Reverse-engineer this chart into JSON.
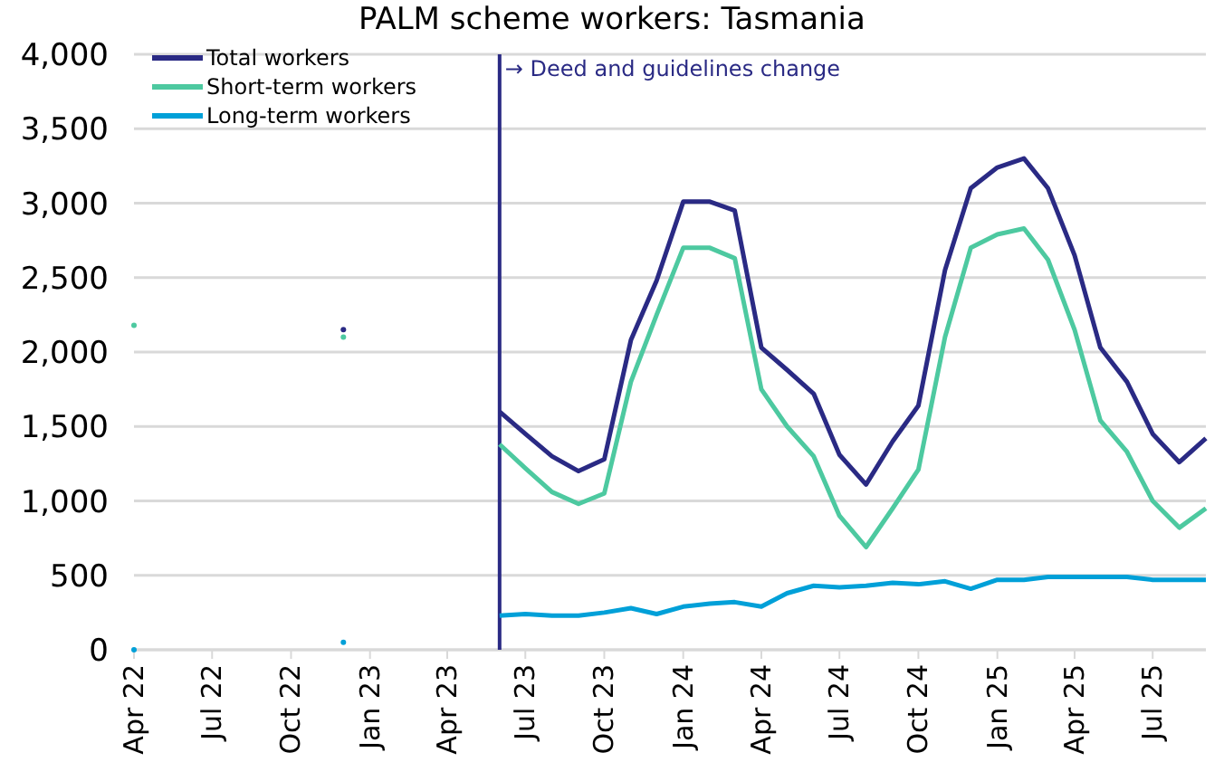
{
  "chart_data": {
    "type": "line",
    "title": "PALM scheme workers: Tasmania",
    "x": [
      "2022-04",
      "2022-05",
      "2022-06",
      "2022-07",
      "2022-08",
      "2022-09",
      "2022-10",
      "2022-11",
      "2022-12",
      "2023-01",
      "2023-02",
      "2023-03",
      "2023-04",
      "2023-05",
      "2023-06",
      "2023-07",
      "2023-08",
      "2023-09",
      "2023-10",
      "2023-11",
      "2023-12",
      "2024-01",
      "2024-02",
      "2024-03",
      "2024-04",
      "2024-05",
      "2024-06",
      "2024-07",
      "2024-08",
      "2024-09",
      "2024-10",
      "2024-11",
      "2024-12",
      "2025-01",
      "2025-02",
      "2025-03",
      "2025-04",
      "2025-05",
      "2025-06",
      "2025-07",
      "2025-08",
      "2025-09"
    ],
    "series": [
      {
        "name": "Total workers",
        "color": "#2a2a84",
        "values": [
          null,
          null,
          null,
          null,
          null,
          null,
          null,
          null,
          2150,
          null,
          null,
          null,
          null,
          null,
          1600,
          1450,
          1300,
          1200,
          1280,
          2080,
          2480,
          3010,
          3010,
          2950,
          2030,
          1880,
          1720,
          1310,
          1110,
          1400,
          1640,
          2550,
          3100,
          3240,
          3300,
          3100,
          2650,
          2030,
          1800,
          1450,
          1260,
          1420
        ]
      },
      {
        "name": "Short-term workers",
        "color": "#4dc9a0",
        "values": [
          2180,
          null,
          null,
          null,
          null,
          null,
          null,
          null,
          2100,
          null,
          null,
          null,
          null,
          null,
          1380,
          1220,
          1060,
          980,
          1050,
          1800,
          2250,
          2700,
          2700,
          2630,
          1750,
          1500,
          1300,
          900,
          690,
          950,
          1210,
          2100,
          2700,
          2790,
          2830,
          2620,
          2150,
          1540,
          1330,
          1000,
          820,
          950
        ]
      },
      {
        "name": "Long-term workers",
        "color": "#00a0d8",
        "values": [
          0,
          null,
          null,
          null,
          null,
          null,
          null,
          null,
          50,
          null,
          null,
          null,
          null,
          null,
          230,
          240,
          230,
          230,
          250,
          280,
          240,
          290,
          310,
          320,
          290,
          380,
          430,
          420,
          430,
          450,
          440,
          460,
          410,
          470,
          470,
          490,
          490,
          490,
          490,
          470,
          470,
          470
        ]
      }
    ],
    "xlim": [
      "2022-04",
      "2025-09"
    ],
    "xticks": [
      {
        "value": "2022-04",
        "label": "Apr 22"
      },
      {
        "value": "2022-07",
        "label": "Jul 22"
      },
      {
        "value": "2022-10",
        "label": "Oct 22"
      },
      {
        "value": "2023-01",
        "label": "Jan 23"
      },
      {
        "value": "2023-04",
        "label": "Apr 23"
      },
      {
        "value": "2023-07",
        "label": "Jul 23"
      },
      {
        "value": "2023-10",
        "label": "Oct 23"
      },
      {
        "value": "2024-01",
        "label": "Jan 24"
      },
      {
        "value": "2024-04",
        "label": "Apr 24"
      },
      {
        "value": "2024-07",
        "label": "Jul 24"
      },
      {
        "value": "2024-10",
        "label": "Oct 24"
      },
      {
        "value": "2025-01",
        "label": "Jan 25"
      },
      {
        "value": "2025-04",
        "label": "Apr 25"
      },
      {
        "value": "2025-07",
        "label": "Jul 25"
      }
    ],
    "ylim": [
      0,
      4000
    ],
    "yticks": [
      {
        "value": 0,
        "label": "0"
      },
      {
        "value": 500,
        "label": "500"
      },
      {
        "value": 1000,
        "label": "1,000"
      },
      {
        "value": 1500,
        "label": "1,500"
      },
      {
        "value": 2000,
        "label": "2,000"
      },
      {
        "value": 2500,
        "label": "2,500"
      },
      {
        "value": 3000,
        "label": "3,000"
      },
      {
        "value": 3500,
        "label": "3,500"
      },
      {
        "value": 4000,
        "label": "4,000"
      }
    ],
    "ref_lines": [
      {
        "axis": "x",
        "value": "2023-06",
        "label": "→ Deed and guidelines change",
        "color": "#2a2a84"
      }
    ],
    "grid": "y",
    "legend": "top left"
  }
}
